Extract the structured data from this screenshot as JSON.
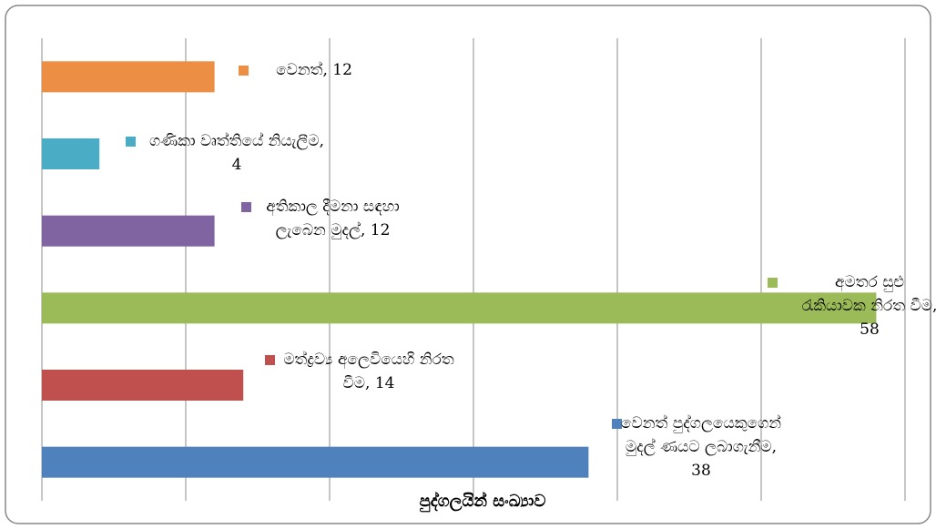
{
  "chart_data": {
    "type": "barh",
    "x_label": "පුද්ගලයින් සංඛ්‍යාව",
    "categories": [
      "වෙනත්",
      "ගණිකා වෘත්තියේ නියැලීම",
      "අතිකාල දීමනා සඳහා ලැබෙන මුදල්",
      "අමතර සුළු රැකියාවක නිරත වීම",
      "මත්ද්‍රව්‍ය අලෙවියෙහි නිරත වීම",
      "වෙනත් පුද්ගලයෙකුගෙන් මුදල් ණයට ලබාගැනීම"
    ],
    "values": [
      12,
      4,
      12,
      58,
      14,
      38
    ],
    "colors": [
      "#ED8E45",
      "#4BACC6",
      "#8064A2",
      "#9BBB59",
      "#C0504D",
      "#4F81BD"
    ],
    "xlim": [
      0,
      60
    ],
    "xticks": [
      0,
      10,
      20,
      30,
      40,
      50,
      60
    ],
    "grid": true
  }
}
